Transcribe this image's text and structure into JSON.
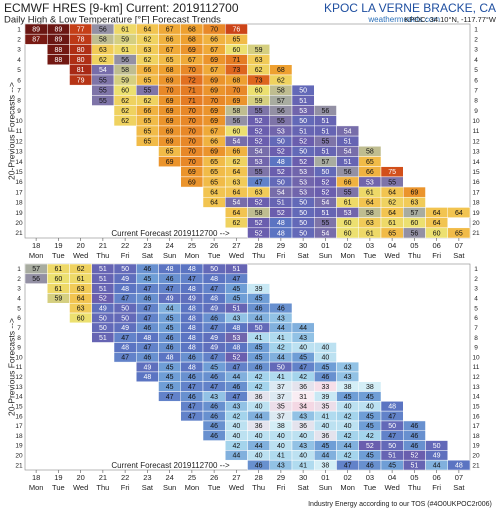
{
  "header": {
    "title": "ECMWF HRES [9-km] Current: 2019112700",
    "station": "KPOC LA VERNE BRACKE, CA",
    "subtitle": "Daily High & Low Temperature [°F] Forecast Trends",
    "site": "weathermodels.com",
    "location": "KPOC: 34.10°N, -117.77°W"
  },
  "footer": "Industry Energy according to our TOS (#4O0UKPOC2r006)",
  "color_stops": [
    {
      "value": 30,
      "color": "#fbf4f8"
    },
    {
      "value": 34,
      "color": "#f4d8e4"
    },
    {
      "value": 38,
      "color": "#d4eef6"
    },
    {
      "value": 42,
      "color": "#a4d4ec"
    },
    {
      "value": 45,
      "color": "#6f9ed6"
    },
    {
      "value": 48,
      "color": "#5b74c2"
    },
    {
      "value": 52,
      "color": "#6a5eae"
    },
    {
      "value": 55,
      "color": "#7e74a8"
    },
    {
      "value": 57,
      "color": "#a8aca0"
    },
    {
      "value": 60,
      "color": "#ece070"
    },
    {
      "value": 64,
      "color": "#f2c450"
    },
    {
      "value": 68,
      "color": "#eea030"
    },
    {
      "value": 72,
      "color": "#e27020"
    },
    {
      "value": 76,
      "color": "#cc4418"
    },
    {
      "value": 82,
      "color": "#a02414"
    },
    {
      "value": 89,
      "color": "#6a1612"
    }
  ],
  "chart_data": [
    {
      "type": "heatmap",
      "x_label": "Current Forecast 2019112700 -->",
      "y_label": "20-Previous Forecasts -->",
      "x": [
        "18",
        "19",
        "20",
        "21",
        "22",
        "23",
        "24",
        "25",
        "26",
        "27",
        "28",
        "29",
        "30",
        "01",
        "02",
        "03",
        "04",
        "05",
        "06",
        "07"
      ],
      "weekdays": [
        "Mon",
        "Tue",
        "Wed",
        "Thu",
        "Fri",
        "Sat",
        "Sun",
        "Mon",
        "Tue",
        "Wed",
        "Thu",
        "Fri",
        "Sat",
        "Sun",
        "Mon",
        "Tue",
        "Wed",
        "Thu",
        "Fri",
        "Sat"
      ],
      "y": [
        1,
        2,
        3,
        4,
        5,
        6,
        7,
        8,
        9,
        10,
        11,
        12,
        13,
        14,
        15,
        16,
        17,
        18,
        19,
        20,
        21
      ],
      "values": [
        [
          89,
          89,
          77,
          56,
          61,
          64,
          67,
          68,
          70,
          76,
          null,
          null,
          null,
          null,
          null,
          null,
          null,
          null,
          null,
          null
        ],
        [
          87,
          89,
          78,
          58,
          59,
          62,
          66,
          68,
          66,
          65,
          null,
          null,
          null,
          null,
          null,
          null,
          null,
          null,
          null,
          null
        ],
        [
          null,
          88,
          80,
          63,
          61,
          63,
          67,
          69,
          67,
          60,
          59,
          null,
          null,
          null,
          null,
          null,
          null,
          null,
          null,
          null
        ],
        [
          null,
          88,
          80,
          62,
          56,
          62,
          65,
          67,
          69,
          71,
          63,
          null,
          null,
          null,
          null,
          null,
          null,
          null,
          null,
          null
        ],
        [
          null,
          null,
          81,
          54,
          58,
          66,
          68,
          70,
          67,
          73,
          62,
          68,
          null,
          null,
          null,
          null,
          null,
          null,
          null,
          null
        ],
        [
          null,
          null,
          79,
          55,
          59,
          65,
          69,
          72,
          69,
          68,
          73,
          62,
          null,
          null,
          null,
          null,
          null,
          null,
          null,
          null
        ],
        [
          null,
          null,
          null,
          55,
          60,
          55,
          70,
          71,
          69,
          70,
          60,
          58,
          50,
          null,
          null,
          null,
          null,
          null,
          null,
          null
        ],
        [
          null,
          null,
          null,
          55,
          62,
          62,
          69,
          71,
          70,
          69,
          59,
          57,
          51,
          null,
          null,
          null,
          null,
          null,
          null,
          null
        ],
        [
          null,
          null,
          null,
          null,
          62,
          66,
          69,
          70,
          69,
          58,
          55,
          56,
          53,
          56,
          null,
          null,
          null,
          null,
          null,
          null
        ],
        [
          null,
          null,
          null,
          null,
          62,
          65,
          69,
          70,
          69,
          56,
          52,
          55,
          50,
          51,
          null,
          null,
          null,
          null,
          null,
          null
        ],
        [
          null,
          null,
          null,
          null,
          null,
          65,
          69,
          70,
          67,
          60,
          52,
          53,
          51,
          51,
          54,
          null,
          null,
          null,
          null,
          null
        ],
        [
          null,
          null,
          null,
          null,
          null,
          65,
          69,
          70,
          66,
          54,
          52,
          50,
          52,
          55,
          51,
          null,
          null,
          null,
          null,
          null
        ],
        [
          null,
          null,
          null,
          null,
          null,
          null,
          65,
          70,
          69,
          66,
          54,
          52,
          50,
          51,
          54,
          58,
          null,
          null,
          null,
          null
        ],
        [
          null,
          null,
          null,
          null,
          null,
          null,
          69,
          70,
          65,
          62,
          53,
          48,
          52,
          57,
          51,
          65,
          null,
          null,
          null,
          null
        ],
        [
          null,
          null,
          null,
          null,
          null,
          null,
          null,
          69,
          65,
          64,
          55,
          52,
          53,
          50,
          56,
          66,
          75,
          null,
          null,
          null
        ],
        [
          null,
          null,
          null,
          null,
          null,
          null,
          null,
          69,
          65,
          63,
          47,
          50,
          53,
          52,
          66,
          53,
          55,
          null,
          null,
          null
        ],
        [
          null,
          null,
          null,
          null,
          null,
          null,
          null,
          null,
          64,
          64,
          63,
          54,
          53,
          52,
          55,
          61,
          64,
          69,
          null,
          null
        ],
        [
          null,
          null,
          null,
          null,
          null,
          null,
          null,
          null,
          64,
          54,
          52,
          51,
          50,
          54,
          61,
          64,
          62,
          63,
          null,
          null
        ],
        [
          null,
          null,
          null,
          null,
          null,
          null,
          null,
          null,
          null,
          64,
          58,
          52,
          50,
          51,
          53,
          58,
          64,
          57,
          64,
          64
        ],
        [
          null,
          null,
          null,
          null,
          null,
          null,
          null,
          null,
          null,
          62,
          52,
          48,
          50,
          55,
          60,
          63,
          61,
          60,
          64,
          null
        ],
        [
          null,
          null,
          null,
          null,
          null,
          null,
          null,
          null,
          null,
          null,
          52,
          48,
          50,
          54,
          60,
          61,
          65,
          56,
          60,
          65
        ]
      ]
    },
    {
      "type": "heatmap",
      "x_label": "Current Forecast 2019112700 -->",
      "y_label": "20-Previous Forecasts -->",
      "x": [
        "18",
        "19",
        "20",
        "21",
        "22",
        "23",
        "24",
        "25",
        "26",
        "27",
        "28",
        "29",
        "30",
        "01",
        "02",
        "03",
        "04",
        "05",
        "06",
        "07"
      ],
      "weekdays": [
        "Mon",
        "Tue",
        "Wed",
        "Thu",
        "Fri",
        "Sat",
        "Sun",
        "Mon",
        "Tue",
        "Wed",
        "Thu",
        "Fri",
        "Sat",
        "Sun",
        "Mon",
        "Tue",
        "Wed",
        "Thu",
        "Fri",
        "Sat"
      ],
      "y": [
        1,
        2,
        3,
        4,
        5,
        6,
        7,
        8,
        9,
        10,
        11,
        12,
        13,
        14,
        15,
        16,
        17,
        18,
        19,
        20,
        21
      ],
      "values": [
        [
          57,
          61,
          62,
          51,
          50,
          46,
          48,
          48,
          50,
          51,
          null,
          null,
          null,
          null,
          null,
          null,
          null,
          null,
          null,
          null
        ],
        [
          56,
          60,
          61,
          51,
          49,
          45,
          46,
          47,
          48,
          47,
          null,
          null,
          null,
          null,
          null,
          null,
          null,
          null,
          null,
          null
        ],
        [
          null,
          61,
          63,
          51,
          48,
          47,
          47,
          48,
          47,
          45,
          39,
          null,
          null,
          null,
          null,
          null,
          null,
          null,
          null,
          null
        ],
        [
          null,
          59,
          64,
          52,
          47,
          46,
          49,
          49,
          48,
          45,
          45,
          null,
          null,
          null,
          null,
          null,
          null,
          null,
          null,
          null
        ],
        [
          null,
          null,
          63,
          49,
          50,
          47,
          44,
          48,
          49,
          51,
          46,
          46,
          null,
          null,
          null,
          null,
          null,
          null,
          null,
          null
        ],
        [
          null,
          null,
          60,
          50,
          50,
          47,
          45,
          48,
          46,
          43,
          44,
          43,
          null,
          null,
          null,
          null,
          null,
          null,
          null,
          null
        ],
        [
          null,
          null,
          null,
          50,
          49,
          46,
          45,
          48,
          47,
          48,
          50,
          44,
          44,
          null,
          null,
          null,
          null,
          null,
          null,
          null
        ],
        [
          null,
          null,
          null,
          51,
          47,
          48,
          46,
          48,
          49,
          53,
          41,
          41,
          43,
          null,
          null,
          null,
          null,
          null,
          null,
          null
        ],
        [
          null,
          null,
          null,
          null,
          48,
          47,
          46,
          48,
          49,
          48,
          45,
          42,
          40,
          40,
          null,
          null,
          null,
          null,
          null,
          null
        ],
        [
          null,
          null,
          null,
          null,
          47,
          46,
          48,
          46,
          47,
          52,
          45,
          44,
          45,
          40,
          null,
          null,
          null,
          null,
          null,
          null
        ],
        [
          null,
          null,
          null,
          null,
          null,
          49,
          45,
          48,
          45,
          47,
          46,
          50,
          47,
          45,
          43,
          null,
          null,
          null,
          null,
          null
        ],
        [
          null,
          null,
          null,
          null,
          null,
          48,
          45,
          46,
          46,
          44,
          42,
          41,
          42,
          46,
          43,
          null,
          null,
          null,
          null,
          null
        ],
        [
          null,
          null,
          null,
          null,
          null,
          null,
          45,
          47,
          47,
          46,
          42,
          37,
          36,
          33,
          38,
          38,
          null,
          null,
          null,
          null
        ],
        [
          null,
          null,
          null,
          null,
          null,
          null,
          47,
          46,
          43,
          47,
          36,
          37,
          31,
          39,
          45,
          45,
          null,
          null,
          null,
          null
        ],
        [
          null,
          null,
          null,
          null,
          null,
          null,
          null,
          47,
          46,
          43,
          40,
          35,
          34,
          35,
          40,
          40,
          48,
          null,
          null,
          null
        ],
        [
          null,
          null,
          null,
          null,
          null,
          null,
          null,
          47,
          46,
          42,
          44,
          37,
          43,
          41,
          42,
          45,
          47,
          null,
          null,
          null
        ],
        [
          null,
          null,
          null,
          null,
          null,
          null,
          null,
          null,
          46,
          40,
          36,
          38,
          36,
          40,
          40,
          45,
          50,
          46,
          null,
          null
        ],
        [
          null,
          null,
          null,
          null,
          null,
          null,
          null,
          null,
          46,
          40,
          40,
          40,
          40,
          36,
          42,
          42,
          47,
          46,
          null,
          null
        ],
        [
          null,
          null,
          null,
          null,
          null,
          null,
          null,
          null,
          null,
          42,
          44,
          40,
          43,
          45,
          44,
          52,
          50,
          46,
          50,
          null
        ],
        [
          null,
          null,
          null,
          null,
          null,
          null,
          null,
          null,
          null,
          44,
          40,
          41,
          40,
          44,
          42,
          45,
          51,
          52,
          49,
          null
        ],
        [
          null,
          null,
          null,
          null,
          null,
          null,
          null,
          null,
          null,
          null,
          46,
          43,
          41,
          38,
          47,
          46,
          45,
          51,
          44,
          48
        ]
      ]
    }
  ]
}
